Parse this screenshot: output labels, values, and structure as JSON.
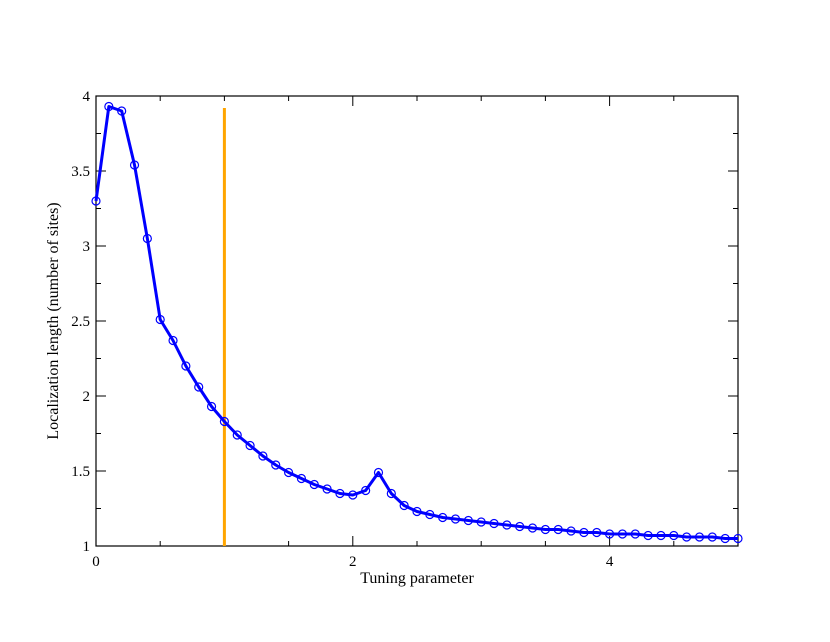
{
  "chart_data": {
    "type": "line",
    "title": "",
    "xlabel": "Tuning parameter",
    "ylabel": "Localization length (number of sites)",
    "xlim": [
      0,
      5
    ],
    "ylim": [
      1,
      4
    ],
    "x_ticks": [
      0,
      2,
      4
    ],
    "x_tick_labels": [
      "0",
      "2",
      "4"
    ],
    "y_ticks": [
      1,
      1.5,
      2,
      2.5,
      3,
      3.5,
      4
    ],
    "y_tick_labels": [
      "1",
      "1.5",
      "2",
      "2.5",
      "3",
      "3.5",
      "4"
    ],
    "grid": false,
    "legend": "none",
    "series": [
      {
        "color": "#0000ff",
        "marker": "open-circle",
        "x": [
          0,
          0.1,
          0.2,
          0.3,
          0.4,
          0.5,
          0.6,
          0.7,
          0.8,
          0.9,
          1.0,
          1.1,
          1.2,
          1.3,
          1.4,
          1.5,
          1.6,
          1.7,
          1.8,
          1.9,
          2.0,
          2.1,
          2.2,
          2.3,
          2.4,
          2.5,
          2.6,
          2.7,
          2.8,
          2.9,
          3.0,
          3.1,
          3.2,
          3.3,
          3.4,
          3.5,
          3.6,
          3.7,
          3.8,
          3.9,
          4.0,
          4.1,
          4.2,
          4.3,
          4.4,
          4.5,
          4.6,
          4.7,
          4.8,
          4.9,
          5.0
        ],
        "y": [
          3.3,
          3.93,
          3.9,
          3.54,
          3.05,
          2.51,
          2.37,
          2.2,
          2.06,
          1.93,
          1.83,
          1.74,
          1.67,
          1.6,
          1.54,
          1.49,
          1.45,
          1.41,
          1.38,
          1.35,
          1.34,
          1.37,
          1.49,
          1.35,
          1.27,
          1.23,
          1.21,
          1.19,
          1.18,
          1.17,
          1.16,
          1.15,
          1.14,
          1.13,
          1.12,
          1.11,
          1.11,
          1.1,
          1.09,
          1.09,
          1.08,
          1.08,
          1.08,
          1.07,
          1.07,
          1.07,
          1.06,
          1.06,
          1.06,
          1.05,
          1.05
        ]
      }
    ],
    "vertical_line": {
      "x": 1.0,
      "y_range": [
        1,
        3.92
      ],
      "color": "#ffa500"
    }
  }
}
